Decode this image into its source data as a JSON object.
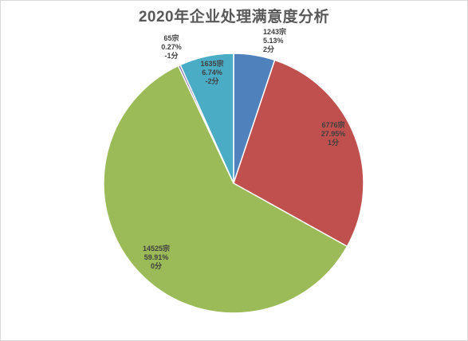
{
  "chart_data": {
    "type": "pie",
    "title": "2020年企业处理满意度分析",
    "start_angle_deg": 0,
    "direction": "clockwise",
    "slices": [
      {
        "count": "1243宗",
        "value": 5.13,
        "percent": "5.13%",
        "score": "2分",
        "color": "#4f81bd"
      },
      {
        "count": "6776宗",
        "value": 27.95,
        "percent": "27.95%",
        "score": "1分",
        "color": "#c0504d"
      },
      {
        "count": "14525宗",
        "value": 59.91,
        "percent": "59.91%",
        "score": "0分",
        "color": "#9bbb59"
      },
      {
        "count": "65宗",
        "value": 0.27,
        "percent": "0.27%",
        "score": "-1分",
        "color": "#8064a2"
      },
      {
        "count": "1635宗",
        "value": 6.74,
        "percent": "6.74%",
        "score": "-2分",
        "color": "#4bacc6"
      }
    ]
  }
}
